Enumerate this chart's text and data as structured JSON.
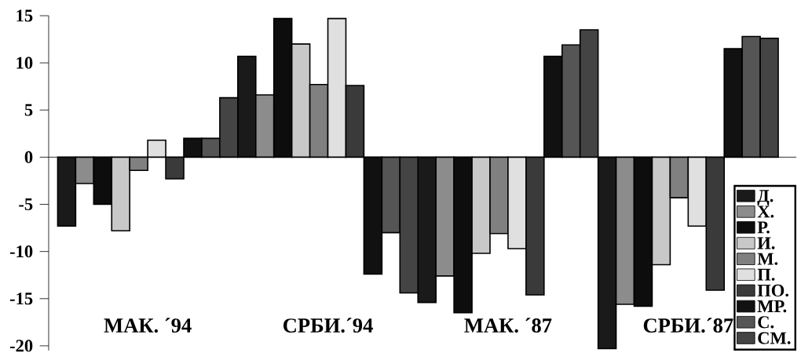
{
  "chart_data": {
    "type": "bar",
    "categories": [
      "МАК. ´94",
      "СРБИ.´94",
      "МАК. ´87",
      "СРБИ.´87"
    ],
    "series": [
      {
        "name": "Д.",
        "color": "#1a1a1a",
        "values": [
          -7.3,
          10.7,
          -15.4,
          -20.3
        ]
      },
      {
        "name": "Х.",
        "color": "#8c8c8c",
        "values": [
          -2.8,
          6.6,
          -12.6,
          -15.6
        ]
      },
      {
        "name": "Р.",
        "color": "#0d0d0d",
        "values": [
          -5.0,
          14.7,
          -16.5,
          -15.8
        ]
      },
      {
        "name": "И.",
        "color": "#c8c8c8",
        "values": [
          -7.8,
          12.0,
          -10.2,
          -11.4
        ]
      },
      {
        "name": "М.",
        "color": "#808080",
        "values": [
          -1.4,
          7.7,
          -8.1,
          -4.3
        ]
      },
      {
        "name": "П.",
        "color": "#e0e0e0",
        "values": [
          1.8,
          14.7,
          -9.7,
          -7.3
        ]
      },
      {
        "name": "ПО.",
        "color": "#3a3a3a",
        "values": [
          -2.3,
          7.6,
          -14.6,
          -14.1
        ]
      },
      {
        "name": "МР.",
        "color": "#111111",
        "values": [
          2.0,
          -12.4,
          10.7,
          11.5
        ]
      },
      {
        "name": "С.",
        "color": "#555555",
        "values": [
          2.0,
          -8.0,
          11.9,
          12.8
        ]
      },
      {
        "name": "СМ.",
        "color": "#444444",
        "values": [
          6.3,
          -14.4,
          13.5,
          12.6
        ]
      }
    ],
    "ylim": [
      -20.5,
      15
    ],
    "yticks": [
      -20,
      -15,
      -10,
      -5,
      0,
      5,
      10,
      15
    ],
    "legend": "bottom right"
  }
}
